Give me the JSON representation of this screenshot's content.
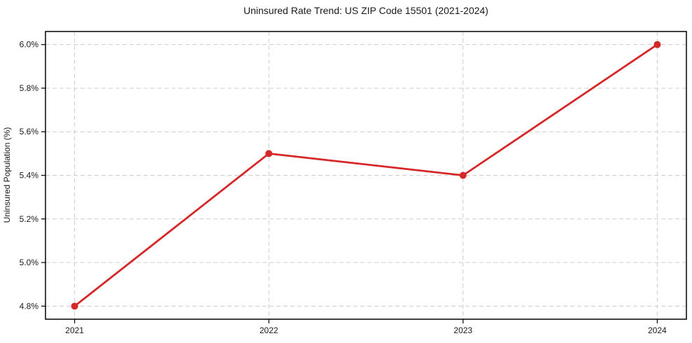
{
  "chart_data": {
    "type": "line",
    "title": "Uninsured Rate Trend: US ZIP Code 15501 (2021-2024)",
    "xlabel": "",
    "ylabel": "Uninsured Population (%)",
    "x": [
      2021,
      2022,
      2023,
      2024
    ],
    "x_tick_labels": [
      "2021",
      "2022",
      "2023",
      "2024"
    ],
    "y_ticks": [
      4.8,
      5.0,
      5.2,
      5.4,
      5.6,
      5.8,
      6.0
    ],
    "y_tick_labels": [
      "4.8%",
      "5.0%",
      "5.2%",
      "5.4%",
      "5.6%",
      "5.8%",
      "6.0%"
    ],
    "series": [
      {
        "name": "Uninsured Population (%)",
        "values": [
          4.8,
          5.5,
          5.4,
          6.0
        ],
        "color": "#d62728",
        "marker": "circle"
      }
    ],
    "xlim": [
      2020.85,
      2024.15
    ],
    "ylim": [
      4.74,
      6.06
    ],
    "grid": true,
    "grid_style": "dashed",
    "grid_color": "#cccccc",
    "frame_color": "#000000",
    "legend": "none"
  }
}
